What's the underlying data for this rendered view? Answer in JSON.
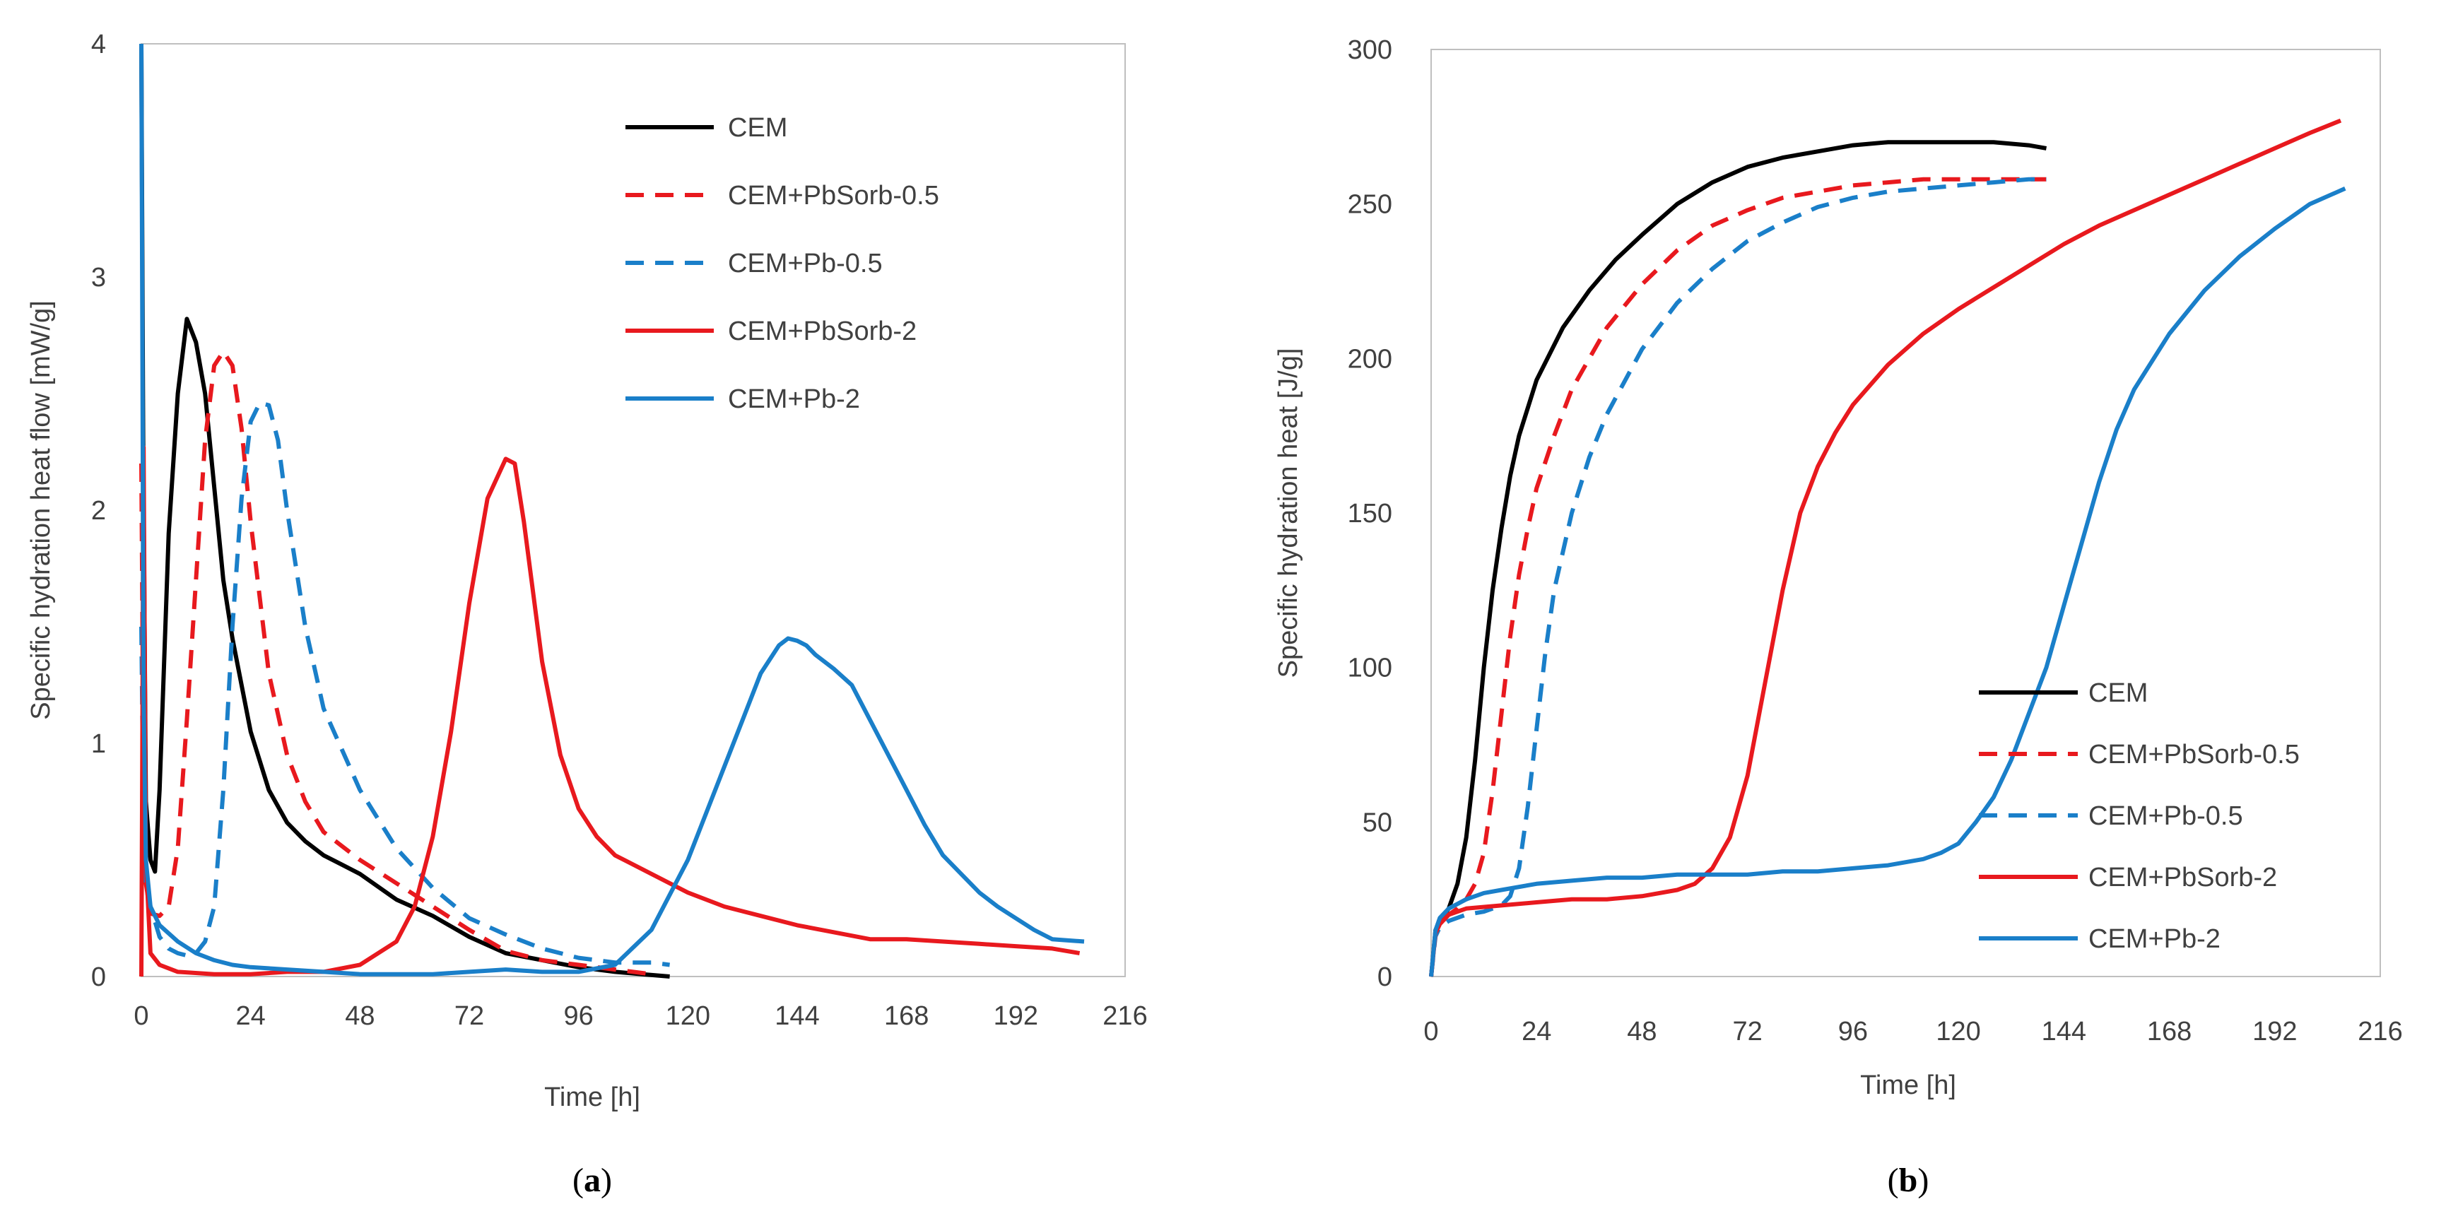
{
  "colors": {
    "black": "#000000",
    "red": "#e8191e",
    "blue": "#1a7fc9",
    "axis": "#bfbfbf",
    "text": "#404040"
  },
  "chart_data": [
    {
      "type": "line",
      "panel_label": "a",
      "xlabel": "Time [h]",
      "ylabel": "Specific hydration heat flow [mW/g]",
      "xlim": [
        0,
        216
      ],
      "ylim": [
        0,
        4
      ],
      "xticks": [
        0,
        24,
        48,
        72,
        96,
        120,
        144,
        168,
        192,
        216
      ],
      "yticks": [
        0,
        1,
        2,
        3,
        4
      ],
      "grid": false,
      "legend": "top-right",
      "series": [
        {
          "name": "CEM",
          "color": "#000000",
          "dash": "solid",
          "x": [
            0,
            0.4,
            1,
            2,
            3,
            4,
            6,
            8,
            10,
            12,
            14,
            16,
            18,
            20,
            24,
            28,
            32,
            36,
            40,
            44,
            48,
            56,
            64,
            72,
            80,
            88,
            96,
            104,
            110,
            116
          ],
          "y": [
            4.0,
            2.3,
            0.75,
            0.5,
            0.45,
            0.8,
            1.9,
            2.5,
            2.82,
            2.72,
            2.5,
            2.1,
            1.7,
            1.45,
            1.05,
            0.8,
            0.66,
            0.58,
            0.52,
            0.48,
            0.44,
            0.33,
            0.26,
            0.17,
            0.1,
            0.07,
            0.04,
            0.02,
            0.01,
            0.0
          ]
        },
        {
          "name": "CEM+PbSorb-0.5",
          "color": "#e8191e",
          "dash": "dashed",
          "x": [
            0,
            0.5,
            1,
            2,
            4,
            6,
            8,
            10,
            12,
            14,
            16,
            18,
            20,
            22,
            24,
            28,
            32,
            36,
            40,
            48,
            56,
            64,
            72,
            80,
            88,
            96,
            104,
            112
          ],
          "y": [
            2.2,
            0.8,
            0.4,
            0.27,
            0.26,
            0.3,
            0.55,
            1.1,
            1.7,
            2.3,
            2.62,
            2.68,
            2.62,
            2.35,
            1.95,
            1.3,
            0.95,
            0.75,
            0.62,
            0.5,
            0.4,
            0.3,
            0.2,
            0.11,
            0.07,
            0.05,
            0.03,
            0.01
          ]
        },
        {
          "name": "CEM+Pb-0.5",
          "color": "#1a7fc9",
          "dash": "dashed",
          "x": [
            0,
            0.5,
            1,
            2,
            4,
            6,
            8,
            10,
            12,
            14,
            16,
            18,
            20,
            22,
            24,
            26,
            28,
            30,
            32,
            36,
            40,
            48,
            56,
            64,
            72,
            80,
            88,
            96,
            104,
            112,
            116
          ],
          "y": [
            1.5,
            0.6,
            0.4,
            0.3,
            0.17,
            0.12,
            0.1,
            0.09,
            0.1,
            0.15,
            0.3,
            0.8,
            1.5,
            2.05,
            2.38,
            2.46,
            2.45,
            2.3,
            2.0,
            1.5,
            1.15,
            0.8,
            0.55,
            0.38,
            0.25,
            0.18,
            0.12,
            0.08,
            0.06,
            0.06,
            0.05
          ]
        },
        {
          "name": "CEM+PbSorb-2",
          "color": "#e8191e",
          "dash": "solid",
          "x": [
            0,
            0.5,
            1,
            2,
            4,
            8,
            16,
            24,
            32,
            40,
            48,
            56,
            60,
            64,
            68,
            72,
            76,
            80,
            82,
            84,
            88,
            92,
            96,
            100,
            104,
            112,
            120,
            128,
            136,
            144,
            152,
            160,
            168,
            176,
            184,
            192,
            200,
            206
          ],
          "y": [
            0.0,
            2.27,
            0.5,
            0.1,
            0.05,
            0.02,
            0.01,
            0.01,
            0.02,
            0.02,
            0.05,
            0.15,
            0.3,
            0.6,
            1.05,
            1.6,
            2.05,
            2.22,
            2.2,
            1.95,
            1.35,
            0.95,
            0.72,
            0.6,
            0.52,
            0.44,
            0.36,
            0.3,
            0.26,
            0.22,
            0.19,
            0.16,
            0.16,
            0.15,
            0.14,
            0.13,
            0.12,
            0.1
          ]
        },
        {
          "name": "CEM+Pb-2",
          "color": "#1a7fc9",
          "dash": "solid",
          "x": [
            0,
            0.5,
            1,
            2,
            4,
            8,
            12,
            16,
            20,
            24,
            32,
            40,
            48,
            56,
            64,
            72,
            80,
            88,
            96,
            104,
            112,
            120,
            128,
            132,
            136,
            140,
            142,
            144,
            146,
            148,
            152,
            156,
            160,
            164,
            168,
            172,
            176,
            180,
            184,
            188,
            192,
            196,
            200,
            207
          ],
          "y": [
            4.0,
            1.2,
            0.5,
            0.3,
            0.22,
            0.15,
            0.1,
            0.07,
            0.05,
            0.04,
            0.03,
            0.02,
            0.01,
            0.01,
            0.01,
            0.02,
            0.03,
            0.02,
            0.02,
            0.05,
            0.2,
            0.5,
            0.9,
            1.1,
            1.3,
            1.42,
            1.45,
            1.44,
            1.42,
            1.38,
            1.32,
            1.25,
            1.1,
            0.95,
            0.8,
            0.65,
            0.52,
            0.44,
            0.36,
            0.3,
            0.25,
            0.2,
            0.16,
            0.15
          ]
        }
      ]
    },
    {
      "type": "line",
      "panel_label": "b",
      "xlabel": "Time [h]",
      "ylabel": "Specific hydration heat [J/g]",
      "xlim": [
        0,
        216
      ],
      "ylim": [
        0,
        300
      ],
      "xticks": [
        0,
        24,
        48,
        72,
        96,
        120,
        144,
        168,
        192,
        216
      ],
      "yticks": [
        0,
        50,
        100,
        150,
        200,
        250,
        300
      ],
      "grid": false,
      "legend": "bottom-right",
      "series": [
        {
          "name": "CEM",
          "color": "#000000",
          "dash": "solid",
          "x": [
            0,
            1,
            2,
            4,
            6,
            8,
            10,
            12,
            14,
            16,
            18,
            20,
            24,
            30,
            36,
            42,
            48,
            56,
            64,
            72,
            80,
            88,
            96,
            104,
            112,
            120,
            128,
            136,
            140
          ],
          "y": [
            0,
            15,
            18,
            22,
            30,
            45,
            70,
            100,
            125,
            145,
            162,
            175,
            193,
            210,
            222,
            232,
            240,
            250,
            257,
            262,
            265,
            267,
            269,
            270,
            270,
            270,
            270,
            269,
            268
          ]
        },
        {
          "name": "CEM+PbSorb-0.5",
          "color": "#e8191e",
          "dash": "dashed",
          "x": [
            0,
            1,
            2,
            4,
            6,
            8,
            10,
            12,
            14,
            16,
            18,
            20,
            22,
            24,
            28,
            32,
            36,
            40,
            48,
            56,
            64,
            72,
            80,
            88,
            96,
            104,
            112,
            120,
            128,
            136,
            140
          ],
          "y": [
            0,
            14,
            17,
            20,
            22,
            25,
            30,
            40,
            60,
            85,
            110,
            130,
            145,
            158,
            175,
            190,
            200,
            210,
            224,
            235,
            243,
            248,
            252,
            254,
            256,
            257,
            258,
            258,
            258,
            258,
            258
          ]
        },
        {
          "name": "CEM+Pb-0.5",
          "color": "#1a7fc9",
          "dash": "dashed",
          "x": [
            0,
            1,
            2,
            4,
            8,
            12,
            16,
            18,
            20,
            22,
            24,
            26,
            28,
            32,
            36,
            40,
            48,
            56,
            64,
            72,
            80,
            88,
            96,
            104,
            112,
            120,
            128,
            136,
            140
          ],
          "y": [
            0,
            13,
            16,
            18,
            20,
            21,
            23,
            26,
            35,
            55,
            80,
            105,
            125,
            150,
            168,
            182,
            203,
            218,
            229,
            238,
            244,
            249,
            252,
            254,
            255,
            256,
            257,
            258,
            258
          ]
        },
        {
          "name": "CEM+PbSorb-2",
          "color": "#e8191e",
          "dash": "solid",
          "x": [
            0,
            1,
            2,
            4,
            8,
            16,
            24,
            32,
            40,
            48,
            56,
            60,
            64,
            68,
            72,
            76,
            80,
            84,
            88,
            92,
            96,
            104,
            112,
            120,
            128,
            136,
            144,
            152,
            160,
            168,
            176,
            184,
            192,
            200,
            207
          ],
          "y": [
            0,
            14,
            17,
            20,
            22,
            23,
            24,
            25,
            25,
            26,
            28,
            30,
            35,
            45,
            65,
            95,
            125,
            150,
            165,
            176,
            185,
            198,
            208,
            216,
            223,
            230,
            237,
            243,
            248,
            253,
            258,
            263,
            268,
            273,
            277
          ]
        },
        {
          "name": "CEM+Pb-2",
          "color": "#1a7fc9",
          "dash": "solid",
          "x": [
            0,
            1,
            2,
            4,
            8,
            12,
            16,
            24,
            32,
            40,
            48,
            56,
            64,
            72,
            80,
            88,
            96,
            104,
            112,
            116,
            120,
            124,
            128,
            132,
            136,
            140,
            144,
            148,
            152,
            156,
            160,
            168,
            176,
            184,
            192,
            200,
            208
          ],
          "y": [
            0,
            15,
            19,
            22,
            25,
            27,
            28,
            30,
            31,
            32,
            32,
            33,
            33,
            33,
            34,
            34,
            35,
            36,
            38,
            40,
            43,
            50,
            58,
            70,
            85,
            100,
            120,
            140,
            160,
            177,
            190,
            208,
            222,
            233,
            242,
            250,
            255
          ]
        }
      ]
    }
  ]
}
